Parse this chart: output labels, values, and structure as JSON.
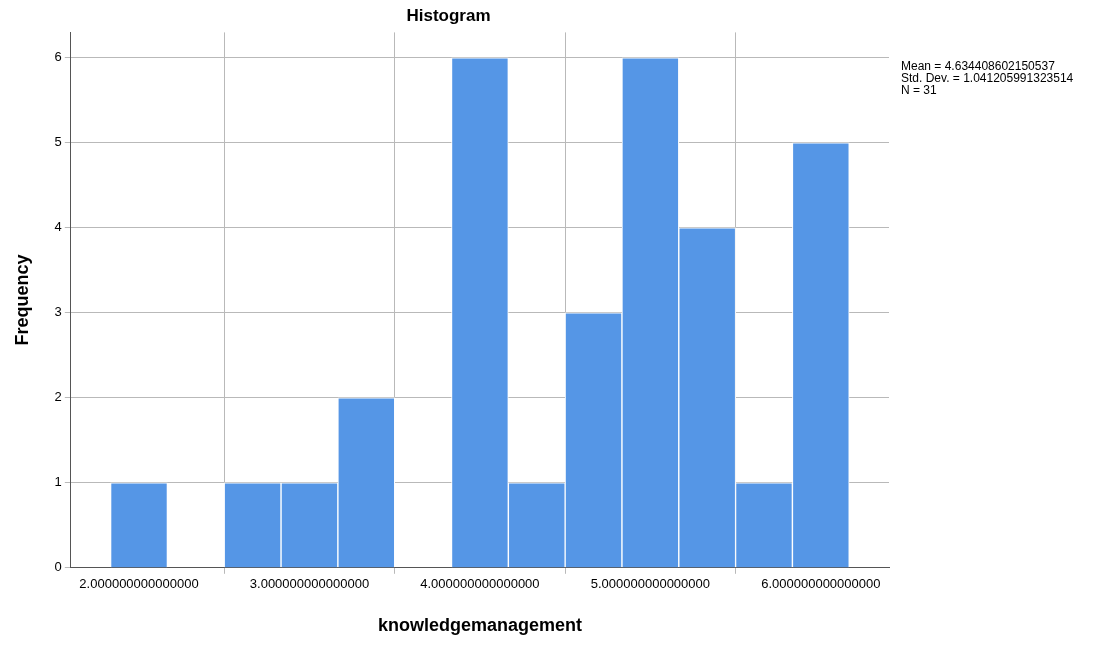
{
  "chart_data": {
    "type": "histogram",
    "title": "Histogram",
    "xlabel": "knowledgemanagement",
    "ylabel": "Frequency",
    "bins": [
      1.833,
      2.167,
      2.5,
      2.833,
      3.167,
      3.5,
      3.833,
      4.167,
      4.5,
      4.833,
      5.167,
      5.5,
      5.833,
      6.167
    ],
    "values": [
      1,
      0,
      1,
      1,
      2,
      0,
      6,
      1,
      3,
      6,
      4,
      1,
      5
    ],
    "color": "#5596e6",
    "xlim": [
      1.6,
      6.4
    ],
    "xticks": [
      {
        "value": 2,
        "label": "2.000000000000000"
      },
      {
        "value": 3,
        "label": "3.000000000000000"
      },
      {
        "value": 4,
        "label": "4.000000000000000"
      },
      {
        "value": 5,
        "label": "5.000000000000000"
      },
      {
        "value": 6,
        "label": "6.000000000000000"
      }
    ],
    "ylim": [
      0,
      6.3
    ],
    "yticks": [
      0,
      1,
      2,
      3,
      4,
      5,
      6
    ],
    "grid": true,
    "annotations": [
      "Mean = 4.634408602150537",
      "Std. Dev. = 1.041205991323514",
      "N = 31"
    ]
  }
}
